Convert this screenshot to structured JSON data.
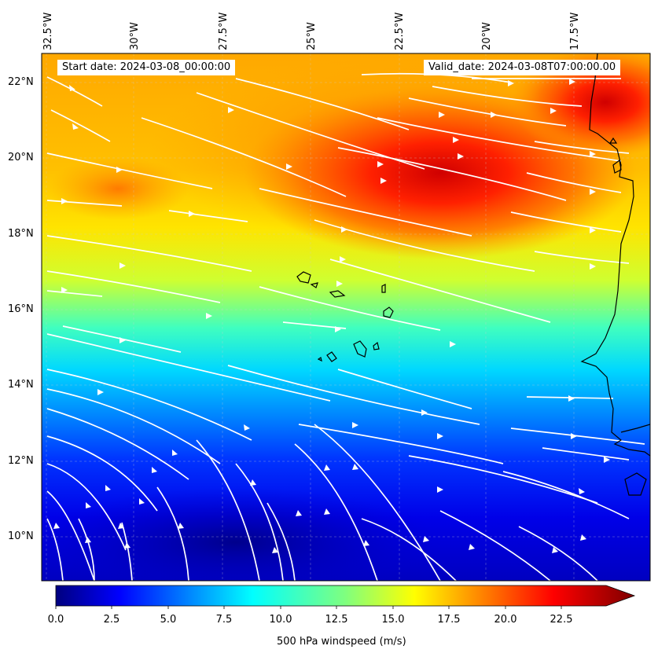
{
  "header": {
    "start_date": "Start date: 2024-03-08_00:00:00",
    "valid_date": "Valid_date: 2024-03-08T07:00:00.00"
  },
  "axes": {
    "longitude_labels": [
      "32.5°W",
      "30°W",
      "27.5°W",
      "25°W",
      "22.5°W",
      "20°W",
      "17.5°W"
    ],
    "latitude_labels": [
      "22°N",
      "20°N",
      "18°N",
      "16°N",
      "14°N",
      "12°N",
      "10°N"
    ]
  },
  "colorbar": {
    "ticks": [
      "0.0",
      "2.5",
      "5.0",
      "7.5",
      "10.0",
      "12.5",
      "15.0",
      "17.5",
      "20.0",
      "22.5"
    ],
    "label": "500 hPa windspeed (m/s)",
    "min": 0,
    "max": 25,
    "extend": "max",
    "colormap": "jet"
  },
  "colors": {
    "streamline": "#ffffff",
    "coastline": "#000000",
    "jet_dark_blue": "#00007f",
    "jet_blue": "#0000ff",
    "jet_cyan": "#00ffff",
    "jet_yellow": "#ffff00",
    "jet_red": "#ff0000",
    "jet_dark_red": "#7f0000"
  }
}
